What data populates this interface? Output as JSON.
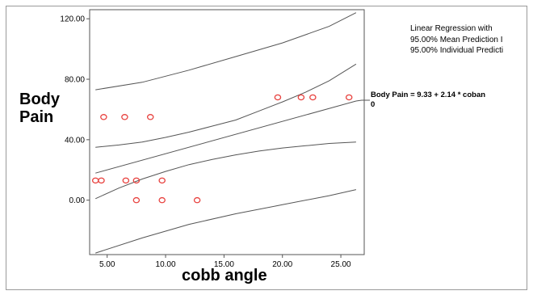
{
  "chart_data": {
    "type": "scatter",
    "title": "",
    "xlabel": "cobb angle",
    "ylabel": "Body Pain",
    "xlim": [
      3.5,
      27
    ],
    "ylim": [
      -36,
      126
    ],
    "x_ticks": [
      5,
      10,
      15,
      20,
      25
    ],
    "x_tick_labels": [
      "5.00",
      "10.00",
      "15.00",
      "20.00",
      "25.00"
    ],
    "y_ticks": [
      0,
      40,
      80,
      120
    ],
    "y_tick_labels": [
      "0.00",
      "40.00",
      "80.00",
      "120.00"
    ],
    "grid": false,
    "legend_position": "top-right",
    "legend": [
      "Linear Regression with",
      "95.00% Mean Prediction I",
      "95.00% Individual Predicti"
    ],
    "annotation": {
      "line1": "Body Pain = 9.33 + 2.14 * coban",
      "line2": "0"
    },
    "colors": {
      "points": "#e8423f",
      "lines": "#555555",
      "frame": "#9a9a9a"
    },
    "points": [
      {
        "x": 4,
        "y": 13
      },
      {
        "x": 4.5,
        "y": 13
      },
      {
        "x": 4.7,
        "y": 55
      },
      {
        "x": 6.5,
        "y": 55
      },
      {
        "x": 6.6,
        "y": 13
      },
      {
        "x": 7.5,
        "y": 13
      },
      {
        "x": 7.5,
        "y": 0
      },
      {
        "x": 8.7,
        "y": 55
      },
      {
        "x": 9.7,
        "y": 13
      },
      {
        "x": 9.7,
        "y": 0
      },
      {
        "x": 12.7,
        "y": 0
      },
      {
        "x": 19.6,
        "y": 68
      },
      {
        "x": 21.6,
        "y": 68
      },
      {
        "x": 22.6,
        "y": 68
      },
      {
        "x": 25.7,
        "y": 68
      }
    ],
    "series": [
      {
        "role": "fit",
        "x": [
          4,
          26.3
        ],
        "y": [
          17.9,
          65.6
        ]
      },
      {
        "role": "mean_upper",
        "x": [
          4,
          6,
          8,
          10,
          12,
          14,
          16,
          18,
          20,
          22,
          24,
          26.3
        ],
        "y": [
          35,
          36.5,
          38.5,
          41.5,
          45,
          49,
          53,
          59,
          65,
          71.5,
          79,
          90
        ]
      },
      {
        "role": "mean_lower",
        "x": [
          4,
          6,
          8,
          10,
          12,
          14,
          16,
          18,
          20,
          22,
          24,
          26.3
        ],
        "y": [
          1,
          8,
          14,
          19,
          23.5,
          27,
          30,
          32.5,
          34.5,
          36,
          37.5,
          38.5
        ]
      },
      {
        "role": "individual_upper",
        "x": [
          4,
          8,
          12,
          16,
          20,
          24,
          26.3
        ],
        "y": [
          73,
          78,
          86,
          95,
          104,
          115,
          124
        ]
      },
      {
        "role": "individual_lower",
        "x": [
          4,
          8,
          12,
          16,
          20,
          24,
          26.3
        ],
        "y": [
          -35,
          -25,
          -16,
          -9,
          -3,
          3,
          7
        ]
      }
    ]
  }
}
